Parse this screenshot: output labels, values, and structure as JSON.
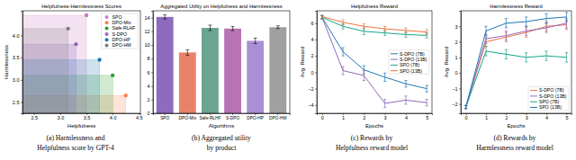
{
  "chart_data": [
    {
      "type": "scatter",
      "title": "Helpfulness-Harmlessness Scores",
      "x_label": "Helpfulness",
      "y_label": "Harmlessness",
      "caption": [
        "(a) Harmlessness and",
        "Helpfulness score by GPT-4"
      ],
      "xlim": [
        2.28,
        4.53
      ],
      "xticks": [
        2.5,
        {
          "value": 3,
          "label": "3.0"
        },
        3.5,
        {
          "value": 4,
          "label": "4.0"
        },
        4.5
      ],
      "ylim": [
        2.25,
        4.55
      ],
      "yticks": [
        2.5,
        {
          "value": 3,
          "label": "3.0"
        },
        3.5,
        {
          "value": 4,
          "label": "4.0"
        }
      ],
      "legend": "upper right",
      "marker": "circle",
      "series": [
        {
          "name": "SPO",
          "color": "#c77cc1",
          "x": [
            3.5
          ],
          "values": [
            4.45
          ]
        },
        {
          "name": "DPO-Mix",
          "color": "#ff7f50",
          "x": [
            4.25
          ],
          "values": [
            2.65
          ]
        },
        {
          "name": "Safe-RLHF",
          "color": "#2ca02c",
          "x": [
            4.0
          ],
          "values": [
            3.1
          ]
        },
        {
          "name": "S-DPO",
          "color": "#9467bd",
          "x": [
            3.3
          ],
          "values": [
            3.8
          ]
        },
        {
          "name": "DPO-HP",
          "color": "#1f77b4",
          "x": [
            3.75
          ],
          "values": [
            3.45
          ]
        },
        {
          "name": "DPO-HM",
          "color": "#7f7f7f",
          "x": [
            3.15
          ],
          "values": [
            4.15
          ]
        }
      ]
    },
    {
      "type": "bar",
      "title": "Aggregated Utility on Helpfulness and Harmlessness",
      "x_label": "Algorithms",
      "caption": [
        "(b) Aggregated utility",
        "by product"
      ],
      "categories": [
        "SPO",
        "DPO-Mix",
        "Safe-RLHF",
        "S-DPO",
        "DPO-HP",
        "DPO-HM"
      ],
      "values": [
        14.1,
        8.9,
        12.5,
        12.4,
        10.6,
        12.6
      ],
      "errors": [
        0.3,
        0.4,
        0.4,
        0.3,
        0.4,
        0.2
      ],
      "colors": [
        "#8e6bbf",
        "#e8836b",
        "#6aa58f",
        "#b873b5",
        "#a98fd6",
        "#a0a0a0"
      ],
      "ylim": [
        0,
        15
      ],
      "yticks": [
        0,
        2,
        4,
        6,
        8,
        10,
        12,
        14
      ]
    },
    {
      "type": "line",
      "title": "Helpfulness Reward",
      "x_label": "Epochs",
      "y_label": "Avg. Reward",
      "caption": [
        "(c) Rewards by",
        "Helpfulness reward model"
      ],
      "x": [
        0,
        1,
        2,
        3,
        4,
        5
      ],
      "xlim": [
        -0.25,
        5.25
      ],
      "xticks": [
        0,
        1,
        2,
        3,
        4,
        5
      ],
      "ylim": [
        -5,
        7.5
      ],
      "yticks": [
        {
          "value": -4,
          "label": "−4"
        },
        {
          "value": -2,
          "label": "−2"
        },
        0,
        2,
        4,
        6
      ],
      "legend": "center right",
      "series": [
        {
          "name": "S-DPO (7B)",
          "color": "#1f77b4",
          "values": [
            6.7,
            2.5,
            0.3,
            -0.6,
            -1.4,
            -2.0
          ],
          "errors": [
            0.2,
            0.5,
            0.5,
            0.5,
            0.4,
            0.4
          ]
        },
        {
          "name": "S-DPO (13B)",
          "color": "#9467bd",
          "values": [
            6.7,
            0.2,
            -0.4,
            -3.8,
            -3.4,
            -3.7
          ],
          "errors": [
            0.2,
            0.5,
            0.6,
            0.5,
            0.5,
            0.4
          ]
        },
        {
          "name": "SPO (7B)",
          "color": "#17a589",
          "values": [
            6.7,
            5.6,
            5.0,
            4.8,
            4.6,
            4.5
          ],
          "errors": [
            0.2,
            0.3,
            0.4,
            0.3,
            0.3,
            0.3
          ]
        },
        {
          "name": "SPO (13B)",
          "color": "#e8743b",
          "values": [
            6.8,
            6.1,
            5.6,
            5.3,
            5.1,
            4.9
          ],
          "errors": [
            0.2,
            0.3,
            0.3,
            0.3,
            0.3,
            0.3
          ]
        }
      ]
    },
    {
      "type": "line",
      "title": "Harmlessness Reward",
      "x_label": "Epochs",
      "y_label": "Avg. Reward",
      "caption": [
        "(d) Rewards by",
        "Harmlessness reward model"
      ],
      "x": [
        0,
        1,
        2,
        3,
        4,
        5
      ],
      "xlim": [
        -0.25,
        5.25
      ],
      "xticks": [
        0,
        1,
        2,
        3,
        4,
        5
      ],
      "ylim": [
        -2.6,
        4.0
      ],
      "yticks": [
        {
          "value": -2,
          "label": "−2"
        },
        {
          "value": -1,
          "label": "−1"
        },
        0,
        1,
        2,
        3
      ],
      "legend": "lower right",
      "series": [
        {
          "name": "S-DPO (7B)",
          "color": "#e8743b",
          "values": [
            -2.2,
            2.0,
            2.3,
            2.6,
            3.0,
            3.1
          ],
          "errors": [
            0.1,
            0.3,
            0.3,
            0.3,
            0.3,
            0.3
          ]
        },
        {
          "name": "S-DPO (13B)",
          "color": "#9467bd",
          "values": [
            -2.2,
            2.2,
            2.4,
            2.7,
            2.9,
            3.2
          ],
          "errors": [
            0.1,
            0.3,
            0.3,
            0.3,
            0.3,
            0.3
          ]
        },
        {
          "name": "SPO (7B)",
          "color": "#17a589",
          "values": [
            -2.2,
            1.4,
            1.2,
            1.0,
            1.1,
            1.0
          ],
          "errors": [
            0.1,
            0.3,
            0.3,
            0.3,
            0.3,
            0.3
          ]
        },
        {
          "name": "SPO (13B)",
          "color": "#1f77b4",
          "values": [
            -2.2,
            2.7,
            3.2,
            3.3,
            3.5,
            3.6
          ],
          "errors": [
            0.1,
            0.3,
            0.3,
            0.3,
            0.3,
            0.3
          ]
        }
      ]
    }
  ]
}
